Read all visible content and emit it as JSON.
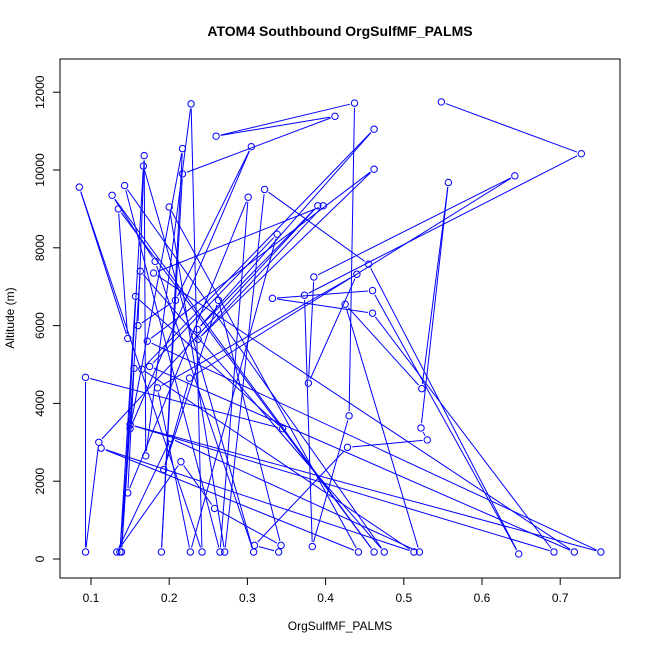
{
  "chart_data": {
    "type": "line",
    "title": "ATOM4 Southbound OrgSulfMF_PALMS",
    "xlabel": "OrgSulfMF_PALMS",
    "ylabel": "Altitude (m)",
    "xlim": [
      0.06,
      0.78
    ],
    "ylim": [
      -500,
      12800
    ],
    "xticks": [
      "0.1",
      "0.2",
      "0.3",
      "0.4",
      "0.5",
      "0.6",
      "0.7"
    ],
    "yticks": [
      "0",
      "2000",
      "4000",
      "6000",
      "8000",
      "10000",
      "12000"
    ],
    "grid": false,
    "line_color": "#0000ff",
    "marker": "open-circle",
    "points": [
      [
        0.548,
        11750
      ],
      [
        0.727,
        10420
      ],
      [
        0.373,
        6780
      ],
      [
        0.383,
        320
      ],
      [
        0.43,
        3680
      ],
      [
        0.437,
        11720
      ],
      [
        0.26,
        10870
      ],
      [
        0.412,
        11380
      ],
      [
        0.217,
        9900
      ],
      [
        0.19,
        180
      ],
      [
        0.217,
        10550
      ],
      [
        0.15,
        3350
      ],
      [
        0.305,
        10600
      ],
      [
        0.208,
        6650
      ],
      [
        0.16,
        6000
      ],
      [
        0.168,
        10370
      ],
      [
        0.17,
        2650
      ],
      [
        0.228,
        11700
      ],
      [
        0.242,
        180
      ],
      [
        0.085,
        9560
      ],
      [
        0.147,
        5670
      ],
      [
        0.135,
        9000
      ],
      [
        0.462,
        180
      ],
      [
        0.127,
        9350
      ],
      [
        0.182,
        7650
      ],
      [
        0.308,
        180
      ],
      [
        0.167,
        10100
      ],
      [
        0.139,
        180
      ],
      [
        0.163,
        7400
      ],
      [
        0.475,
        180
      ],
      [
        0.143,
        9600
      ],
      [
        0.265,
        180
      ],
      [
        0.301,
        9300
      ],
      [
        0.147,
        1700
      ],
      [
        0.155,
        4900
      ],
      [
        0.137,
        180
      ],
      [
        0.157,
        6750
      ],
      [
        0.345,
        3350
      ],
      [
        0.093,
        4670
      ],
      [
        0.093,
        180
      ],
      [
        0.11,
        3000
      ],
      [
        0.39,
        9080
      ],
      [
        0.236,
        5900
      ],
      [
        0.462,
        11050
      ],
      [
        0.165,
        4880
      ],
      [
        0.513,
        180
      ],
      [
        0.113,
        2850
      ],
      [
        0.442,
        180
      ],
      [
        0.2,
        9050
      ],
      [
        0.271,
        180
      ],
      [
        0.322,
        9500
      ],
      [
        0.455,
        7580
      ],
      [
        0.647,
        130
      ],
      [
        0.46,
        6900
      ],
      [
        0.332,
        6700
      ],
      [
        0.46,
        6320
      ],
      [
        0.692,
        180
      ],
      [
        0.15,
        3450
      ],
      [
        0.752,
        180
      ],
      [
        0.172,
        5600
      ],
      [
        0.462,
        10020
      ],
      [
        0.237,
        5650
      ],
      [
        0.397,
        9080
      ],
      [
        0.18,
        7350
      ],
      [
        0.718,
        180
      ],
      [
        0.175,
        4950
      ],
      [
        0.338,
        8350
      ],
      [
        0.227,
        180
      ],
      [
        0.185,
        4400
      ],
      [
        0.44,
        7320
      ],
      [
        0.378,
        4520
      ],
      [
        0.385,
        7250
      ],
      [
        0.642,
        9850
      ],
      [
        0.226,
        4650
      ],
      [
        0.193,
        2300
      ],
      [
        0.263,
        6650
      ],
      [
        0.343,
        350
      ],
      [
        0.258,
        1300
      ],
      [
        0.215,
        2500
      ],
      [
        0.133,
        180
      ],
      [
        0.202,
        3100
      ],
      [
        0.52,
        180
      ],
      [
        0.425,
        6550
      ],
      [
        0.523,
        4380
      ],
      [
        0.557,
        9680
      ],
      [
        0.522,
        3370
      ],
      [
        0.53,
        3060
      ],
      [
        0.428,
        2870
      ],
      [
        0.309,
        350
      ],
      [
        0.34,
        180
      ]
    ]
  }
}
